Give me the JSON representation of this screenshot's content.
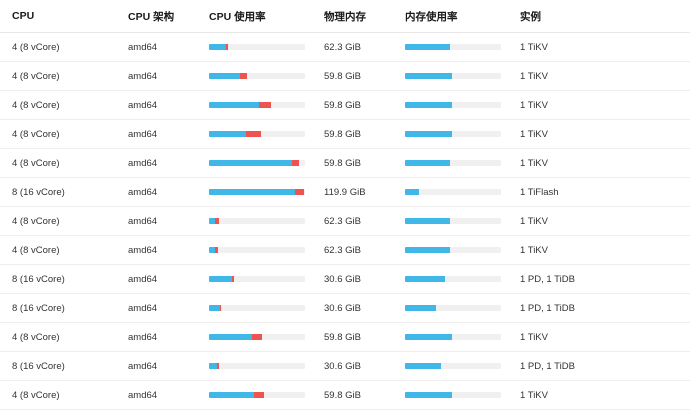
{
  "headers": {
    "cpu": "CPU",
    "arch": "CPU 架构",
    "cpu_usage": "CPU 使用率",
    "memory": "物理内存",
    "mem_usage": "内存使用率",
    "instances": "实例"
  },
  "colors": {
    "usage_primary": "#3fb8e8",
    "usage_secondary": "#ef5350",
    "track": "#f0f0f0"
  },
  "rows": [
    {
      "cpu": "4 (8 vCore)",
      "arch": "amd64",
      "cpu_used": 0.18,
      "cpu_extra": 0.02,
      "memory": "62.3 GiB",
      "mem_used": 0.47,
      "instances": "1 TiKV"
    },
    {
      "cpu": "4 (8 vCore)",
      "arch": "amd64",
      "cpu_used": 0.32,
      "cpu_extra": 0.08,
      "memory": "59.8 GiB",
      "mem_used": 0.49,
      "instances": "1 TiKV"
    },
    {
      "cpu": "4 (8 vCore)",
      "arch": "amd64",
      "cpu_used": 0.52,
      "cpu_extra": 0.13,
      "memory": "59.8 GiB",
      "mem_used": 0.49,
      "instances": "1 TiKV"
    },
    {
      "cpu": "4 (8 vCore)",
      "arch": "amd64",
      "cpu_used": 0.39,
      "cpu_extra": 0.15,
      "memory": "59.8 GiB",
      "mem_used": 0.49,
      "instances": "1 TiKV"
    },
    {
      "cpu": "4 (8 vCore)",
      "arch": "amd64",
      "cpu_used": 0.86,
      "cpu_extra": 0.08,
      "memory": "59.8 GiB",
      "mem_used": 0.47,
      "instances": "1 TiKV"
    },
    {
      "cpu": "8 (16 vCore)",
      "arch": "amd64",
      "cpu_used": 0.9,
      "cpu_extra": 0.09,
      "memory": "119.9 GiB",
      "mem_used": 0.15,
      "instances": "1 TiFlash"
    },
    {
      "cpu": "4 (8 vCore)",
      "arch": "amd64",
      "cpu_used": 0.06,
      "cpu_extra": 0.04,
      "memory": "62.3 GiB",
      "mem_used": 0.47,
      "instances": "1 TiKV"
    },
    {
      "cpu": "4 (8 vCore)",
      "arch": "amd64",
      "cpu_used": 0.06,
      "cpu_extra": 0.03,
      "memory": "62.3 GiB",
      "mem_used": 0.47,
      "instances": "1 TiKV"
    },
    {
      "cpu": "8 (16 vCore)",
      "arch": "amd64",
      "cpu_used": 0.24,
      "cpu_extra": 0.02,
      "memory": "30.6 GiB",
      "mem_used": 0.42,
      "instances": "1 PD, 1 TiDB"
    },
    {
      "cpu": "8 (16 vCore)",
      "arch": "amd64",
      "cpu_used": 0.11,
      "cpu_extra": 0.01,
      "memory": "30.6 GiB",
      "mem_used": 0.32,
      "instances": "1 PD, 1 TiDB"
    },
    {
      "cpu": "4 (8 vCore)",
      "arch": "amd64",
      "cpu_used": 0.45,
      "cpu_extra": 0.1,
      "memory": "59.8 GiB",
      "mem_used": 0.49,
      "instances": "1 TiKV"
    },
    {
      "cpu": "8 (16 vCore)",
      "arch": "amd64",
      "cpu_used": 0.08,
      "cpu_extra": 0.02,
      "memory": "30.6 GiB",
      "mem_used": 0.37,
      "instances": "1 PD, 1 TiDB"
    },
    {
      "cpu": "4 (8 vCore)",
      "arch": "amd64",
      "cpu_used": 0.47,
      "cpu_extra": 0.1,
      "memory": "59.8 GiB",
      "mem_used": 0.49,
      "instances": "1 TiKV"
    }
  ]
}
